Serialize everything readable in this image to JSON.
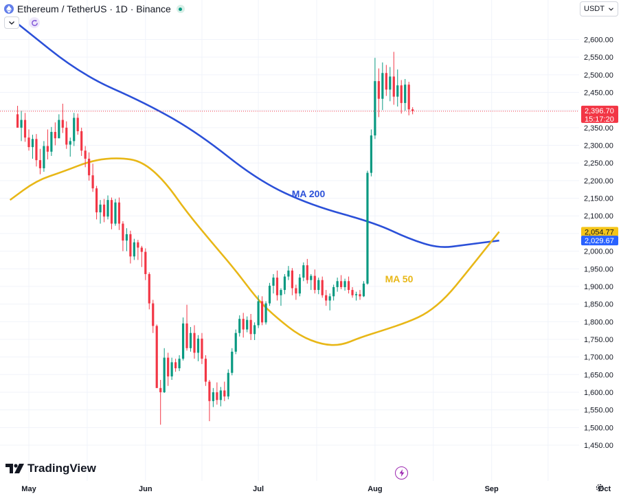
{
  "header": {
    "symbol_title": "Ethereum / TetherUS · 1D · Binance"
  },
  "currency_button": {
    "label": "USDT"
  },
  "logo": {
    "text": "TradingView"
  },
  "icons": {
    "coin": "ethereum-icon",
    "status": "market-open-dot-icon",
    "collapse": "chevron-down-icon",
    "refresh": "refresh-icon",
    "bolt": "lightning-icon",
    "settings": "gear-icon"
  },
  "colors": {
    "up": "#089981",
    "down": "#f23645",
    "ma200": "#2962ff",
    "ma50": "#f5c518",
    "ma200_line": "#2b50d8",
    "ma50_line": "#e8b717",
    "grid": "#f0f3fa"
  },
  "chart_data": {
    "type": "candlestick",
    "title": "Ethereum / TetherUS · 1D · Binance",
    "y_axis": {
      "min": 1450,
      "max": 2600,
      "ticks": [
        1450,
        1500,
        1550,
        1600,
        1650,
        1700,
        1750,
        1800,
        1850,
        1900,
        1950,
        2000,
        2050,
        2100,
        2150,
        2200,
        2250,
        2300,
        2350,
        2400,
        2450,
        2500,
        2550,
        2600
      ],
      "tick_labels": [
        "1,450.00",
        "1,500.00",
        "1,550.00",
        "1,600.00",
        "1,650.00",
        "1,700.00",
        "1,750.00",
        "1,800.00",
        "1,850.00",
        "1,900.00",
        "1,950.00",
        "2,000.00",
        "2,050.00",
        "2,100.00",
        "2,150.00",
        "2,200.00",
        "2,250.00",
        "2,300.00",
        "2,350.00",
        "2,400.00",
        "2,450.00",
        "2,500.00",
        "2,550.00",
        "2,600.00"
      ],
      "side": "right",
      "grid": true
    },
    "x_axis": {
      "tick_labels": [
        "May",
        "Jun",
        "Jul",
        "Aug",
        "Sep",
        "Oct"
      ],
      "tick_dates": [
        "2024-05-01",
        "2024-06-01",
        "2024-07-01",
        "2024-08-01",
        "2024-09-01",
        "2024-10-01"
      ],
      "first_candle_date": "2024-04-28",
      "grid": true
    },
    "last_price": {
      "value": 2396.7,
      "label": "2,396.70",
      "countdown": "15:17:20"
    },
    "moving_averages": [
      {
        "name": "MA 200",
        "last_label": "2,029.67",
        "points": [
          [
            "2024-04-28",
            2645
          ],
          [
            "2024-05-15",
            2500
          ],
          [
            "2024-06-01",
            2420
          ],
          [
            "2024-06-15",
            2335
          ],
          [
            "2024-07-01",
            2200
          ],
          [
            "2024-07-15",
            2130
          ],
          [
            "2024-08-01",
            2080
          ],
          [
            "2024-08-10",
            2035
          ],
          [
            "2024-08-18",
            2008
          ],
          [
            "2024-08-25",
            2018
          ],
          [
            "2024-09-03",
            2030
          ]
        ]
      },
      {
        "name": "MA 50",
        "last_label": "2,054.77",
        "points": [
          [
            "2024-04-26",
            2145
          ],
          [
            "2024-05-03",
            2200
          ],
          [
            "2024-05-10",
            2225
          ],
          [
            "2024-05-18",
            2258
          ],
          [
            "2024-05-25",
            2265
          ],
          [
            "2024-05-31",
            2255
          ],
          [
            "2024-06-06",
            2200
          ],
          [
            "2024-06-12",
            2110
          ],
          [
            "2024-06-19",
            2020
          ],
          [
            "2024-06-25",
            1945
          ],
          [
            "2024-07-01",
            1860
          ],
          [
            "2024-07-06",
            1810
          ],
          [
            "2024-07-12",
            1760
          ],
          [
            "2024-07-18",
            1735
          ],
          [
            "2024-07-23",
            1733
          ],
          [
            "2024-07-28",
            1755
          ],
          [
            "2024-08-03",
            1775
          ],
          [
            "2024-08-10",
            1800
          ],
          [
            "2024-08-15",
            1825
          ],
          [
            "2024-08-20",
            1870
          ],
          [
            "2024-08-25",
            1935
          ],
          [
            "2024-08-31",
            2015
          ],
          [
            "2024-09-03",
            2055
          ]
        ]
      }
    ],
    "candles": [
      [
        2388,
        2412,
        2355,
        2350
      ],
      [
        2350,
        2398,
        2312,
        2372
      ],
      [
        2372,
        2392,
        2310,
        2322
      ],
      [
        2322,
        2345,
        2285,
        2295
      ],
      [
        2295,
        2330,
        2262,
        2318
      ],
      [
        2318,
        2332,
        2240,
        2258
      ],
      [
        2258,
        2290,
        2218,
        2235
      ],
      [
        2235,
        2312,
        2225,
        2298
      ],
      [
        2298,
        2345,
        2260,
        2282
      ],
      [
        2282,
        2352,
        2270,
        2338
      ],
      [
        2338,
        2365,
        2300,
        2320
      ],
      [
        2320,
        2388,
        2320,
        2372
      ],
      [
        2372,
        2418,
        2335,
        2350
      ],
      [
        2350,
        2368,
        2290,
        2302
      ],
      [
        2302,
        2322,
        2268,
        2312
      ],
      [
        2312,
        2392,
        2298,
        2378
      ],
      [
        2378,
        2390,
        2330,
        2340
      ],
      [
        2340,
        2350,
        2270,
        2285
      ],
      [
        2285,
        2298,
        2238,
        2262
      ],
      [
        2262,
        2280,
        2200,
        2215
      ],
      [
        2215,
        2248,
        2168,
        2178
      ],
      [
        2178,
        2185,
        2090,
        2110
      ],
      [
        2110,
        2145,
        2078,
        2132
      ],
      [
        2132,
        2148,
        2082,
        2098
      ],
      [
        2098,
        2158,
        2090,
        2145
      ],
      [
        2145,
        2152,
        2062,
        2078
      ],
      [
        2078,
        2148,
        2072,
        2138
      ],
      [
        2138,
        2152,
        2060,
        2078
      ],
      [
        2078,
        2085,
        2000,
        2030
      ],
      [
        2030,
        2065,
        2000,
        2048
      ],
      [
        2048,
        2058,
        1965,
        1985
      ],
      [
        1985,
        2035,
        1975,
        2025
      ],
      [
        2025,
        2032,
        1975,
        2010
      ],
      [
        2010,
        2015,
        1955,
        1998
      ],
      [
        1998,
        2008,
        1918,
        1935
      ],
      [
        1935,
        1940,
        1835,
        1852
      ],
      [
        1852,
        1862,
        1768,
        1788
      ],
      [
        1788,
        1792,
        1612,
        1612
      ],
      [
        1612,
        1635,
        1508,
        1600
      ],
      [
        1600,
        1725,
        1598,
        1698
      ],
      [
        1698,
        1712,
        1618,
        1645
      ],
      [
        1645,
        1698,
        1635,
        1685
      ],
      [
        1685,
        1695,
        1658,
        1668
      ],
      [
        1668,
        1705,
        1660,
        1695
      ],
      [
        1695,
        1812,
        1690,
        1795
      ],
      [
        1795,
        1848,
        1718,
        1725
      ],
      [
        1725,
        1785,
        1715,
        1768
      ],
      [
        1768,
        1790,
        1695,
        1712
      ],
      [
        1712,
        1762,
        1688,
        1752
      ],
      [
        1752,
        1768,
        1680,
        1695
      ],
      [
        1695,
        1705,
        1618,
        1630
      ],
      [
        1630,
        1635,
        1518,
        1575
      ],
      [
        1575,
        1612,
        1558,
        1600
      ],
      [
        1600,
        1628,
        1565,
        1578
      ],
      [
        1578,
        1615,
        1560,
        1605
      ],
      [
        1605,
        1630,
        1575,
        1588
      ],
      [
        1588,
        1665,
        1580,
        1655
      ],
      [
        1655,
        1725,
        1648,
        1715
      ],
      [
        1715,
        1778,
        1708,
        1768
      ],
      [
        1768,
        1818,
        1758,
        1808
      ],
      [
        1808,
        1825,
        1755,
        1778
      ],
      [
        1778,
        1815,
        1770,
        1805
      ],
      [
        1805,
        1822,
        1748,
        1765
      ],
      [
        1765,
        1798,
        1748,
        1790
      ],
      [
        1790,
        1875,
        1782,
        1858
      ],
      [
        1858,
        1872,
        1790,
        1798
      ],
      [
        1798,
        1858,
        1792,
        1852
      ],
      [
        1852,
        1910,
        1845,
        1902
      ],
      [
        1902,
        1935,
        1880,
        1925
      ],
      [
        1925,
        1945,
        1860,
        1875
      ],
      [
        1875,
        1895,
        1845,
        1890
      ],
      [
        1890,
        1935,
        1878,
        1928
      ],
      [
        1928,
        1958,
        1918,
        1945
      ],
      [
        1945,
        1952,
        1875,
        1895
      ],
      [
        1895,
        1905,
        1862,
        1880
      ],
      [
        1880,
        1935,
        1872,
        1925
      ],
      [
        1925,
        1968,
        1915,
        1960
      ],
      [
        1960,
        1978,
        1908,
        1918
      ],
      [
        1918,
        1935,
        1890,
        1930
      ],
      [
        1930,
        1948,
        1880,
        1890
      ],
      [
        1890,
        1925,
        1878,
        1918
      ],
      [
        1918,
        1928,
        1868,
        1875
      ],
      [
        1875,
        1890,
        1845,
        1860
      ],
      [
        1860,
        1880,
        1832,
        1872
      ],
      [
        1872,
        1905,
        1860,
        1898
      ],
      [
        1898,
        1925,
        1885,
        1915
      ],
      [
        1915,
        1932,
        1892,
        1898
      ],
      [
        1898,
        1922,
        1888,
        1915
      ],
      [
        1915,
        1928,
        1880,
        1890
      ],
      [
        1890,
        1898,
        1868,
        1875
      ],
      [
        1875,
        1885,
        1860,
        1878
      ],
      [
        1878,
        1890,
        1862,
        1872
      ],
      [
        1872,
        1915,
        1870,
        1908
      ],
      [
        1908,
        2228,
        1905,
        2222
      ],
      [
        2222,
        2345,
        2212,
        2328
      ],
      [
        2328,
        2548,
        2318,
        2482
      ],
      [
        2482,
        2518,
        2380,
        2432
      ],
      [
        2432,
        2535,
        2400,
        2505
      ],
      [
        2505,
        2528,
        2440,
        2458
      ],
      [
        2458,
        2522,
        2425,
        2495
      ],
      [
        2495,
        2565,
        2415,
        2438
      ],
      [
        2438,
        2515,
        2410,
        2470
      ],
      [
        2470,
        2485,
        2390,
        2420
      ],
      [
        2420,
        2488,
        2398,
        2472
      ],
      [
        2472,
        2480,
        2385,
        2402
      ],
      [
        2402,
        2408,
        2388,
        2397
      ]
    ]
  }
}
